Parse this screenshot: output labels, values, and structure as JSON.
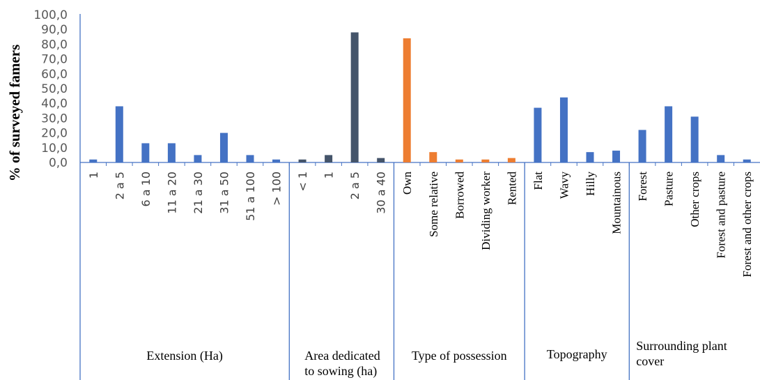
{
  "chart_data": {
    "type": "bar",
    "ylabel": "% of surveyed famers",
    "ylim": [
      0,
      100
    ],
    "ytick_step": 10,
    "ytick_labels": [
      "0,0",
      "10,0",
      "20,0",
      "30,0",
      "40,0",
      "50,0",
      "60,0",
      "70,0",
      "80,0",
      "90,0",
      "100,0"
    ],
    "grid": false,
    "legend": "none",
    "colors": {
      "blue": "#4472c4",
      "dark": "#44546a",
      "orange": "#ed7d31",
      "axis": "#4472c4"
    },
    "groups": [
      {
        "label": "Extension (Ha)",
        "label_font": "sans",
        "categories": [
          "1",
          "2 a 5",
          "6 a 10",
          "11 a 20",
          "21 a 30",
          "31 a 50",
          "51 a 100",
          "> 100"
        ],
        "values": [
          2,
          38,
          13,
          13,
          5,
          20,
          5,
          2
        ],
        "color": "blue"
      },
      {
        "label": "Area dedicated to sowing (ha)",
        "label_font": "sans",
        "categories": [
          "< 1",
          "1",
          "2 a 5",
          "30 a 40"
        ],
        "values": [
          2,
          5,
          88,
          3
        ],
        "color": "dark"
      },
      {
        "label": "Type of possession",
        "label_font": "serif",
        "categories": [
          "Own",
          "Some relative",
          "Borrowed",
          "Dividing worker",
          "Rented"
        ],
        "values": [
          84,
          7,
          2,
          2,
          3
        ],
        "color": "orange"
      },
      {
        "label": "Topography",
        "label_font": "serif",
        "categories": [
          "Flat",
          "Wavy",
          "Hilly",
          "Mountainous"
        ],
        "values": [
          37,
          44,
          7,
          8
        ],
        "color": "blue"
      },
      {
        "label": "Surrounding plant cover",
        "label_font": "serif",
        "categories": [
          "Forest",
          "Pasture",
          "Other crops",
          "Forest and pasture",
          "Forest and other crops"
        ],
        "values": [
          22,
          38,
          31,
          5,
          2
        ],
        "color": "blue"
      }
    ]
  }
}
